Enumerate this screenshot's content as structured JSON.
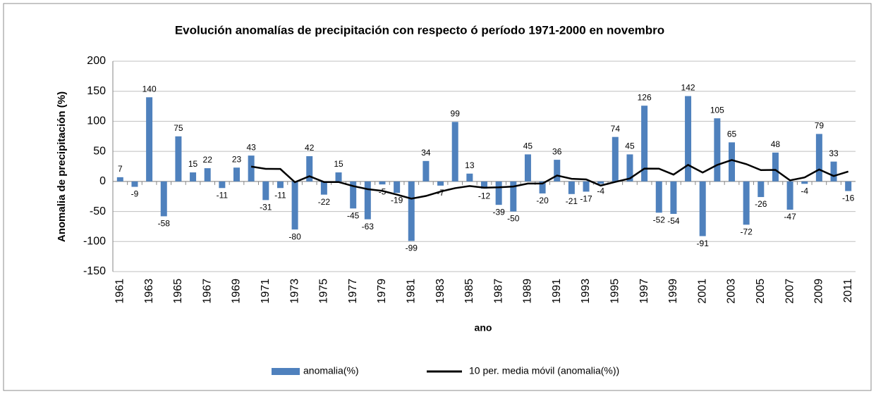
{
  "chart_data": {
    "type": "bar",
    "title": "Evolución  anomalías de  precipitación con respecto ó período 1971-2000 en novembro",
    "x_label": "ano",
    "y_label": "Anomalia de precipitación  (%)",
    "categories": [
      "1961",
      null,
      "1963",
      null,
      "1965",
      null,
      "1967",
      null,
      "1969",
      null,
      "1971",
      null,
      "1973",
      null,
      "1975",
      null,
      "1977",
      null,
      "1979",
      null,
      "1981",
      null,
      "1983",
      null,
      "1985",
      null,
      "1987",
      null,
      "1989",
      null,
      "1991",
      null,
      "1993",
      null,
      "1995",
      null,
      "1997",
      null,
      "1999",
      null,
      "2001",
      null,
      "2003",
      null,
      "2005",
      null,
      "2007",
      null,
      "2009",
      null,
      "2011"
    ],
    "series": [
      {
        "name": "anomalia(%)",
        "type": "bar",
        "color": "#4f81bd",
        "values": [
          7,
          -9,
          140,
          -58,
          75,
          15,
          22,
          -11,
          23,
          43,
          -31,
          -11,
          -80,
          42,
          -22,
          15,
          -45,
          -63,
          -5,
          -19,
          -99,
          34,
          -7,
          99,
          13,
          -12,
          -39,
          -50,
          45,
          -20,
          36,
          -21,
          -17,
          -4,
          74,
          45,
          126,
          -52,
          -54,
          142,
          -91,
          105,
          65,
          -72,
          -26,
          48,
          -47,
          -4,
          79,
          33,
          -16
        ]
      },
      {
        "name": "10 per. media móvil (anomalia(%))",
        "type": "line",
        "color": "#000000",
        "values": [
          null,
          null,
          null,
          null,
          null,
          null,
          null,
          null,
          null,
          24.7,
          20.9,
          20.7,
          -1.3,
          8.7,
          -1.0,
          -1.0,
          -7.7,
          -12.9,
          -15.7,
          -21.9,
          -28.7,
          -24.2,
          -16.9,
          -11.2,
          -7.7,
          -10.4,
          -9.8,
          -8.5,
          -3.5,
          -3.6,
          9.9,
          4.4,
          3.4,
          -6.9,
          -0.8,
          4.9,
          21.4,
          21.2,
          11.3,
          27.5,
          14.8,
          27.4,
          35.6,
          28.8,
          18.8,
          19.1,
          1.8,
          6.6,
          19.9,
          9.0,
          16.5
        ]
      }
    ],
    "ylim": [
      -150,
      200
    ],
    "yticks": [
      -150,
      -100,
      -50,
      0,
      50,
      100,
      150,
      200
    ],
    "grid": true,
    "legend": "bottom"
  }
}
